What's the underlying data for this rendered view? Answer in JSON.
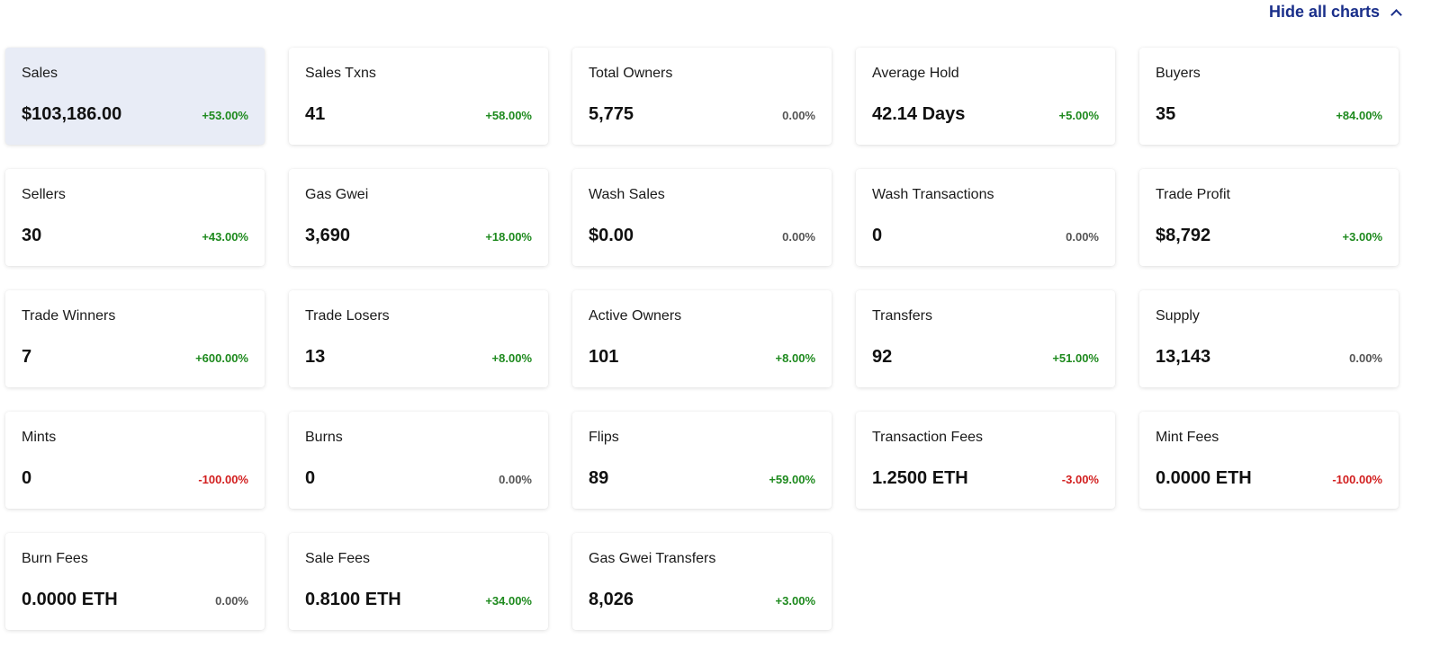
{
  "header": {
    "hide_label": "Hide all charts"
  },
  "cards": [
    {
      "label": "Sales",
      "value": "$103,186.00",
      "change": "+53.00%",
      "trend": "pos",
      "selected": true
    },
    {
      "label": "Sales Txns",
      "value": "41",
      "change": "+58.00%",
      "trend": "pos"
    },
    {
      "label": "Total Owners",
      "value": "5,775",
      "change": "0.00%",
      "trend": "neu"
    },
    {
      "label": "Average Hold",
      "value": "42.14 Days",
      "change": "+5.00%",
      "trend": "pos"
    },
    {
      "label": "Buyers",
      "value": "35",
      "change": "+84.00%",
      "trend": "pos"
    },
    {
      "label": "Sellers",
      "value": "30",
      "change": "+43.00%",
      "trend": "pos"
    },
    {
      "label": "Gas Gwei",
      "value": "3,690",
      "change": "+18.00%",
      "trend": "pos"
    },
    {
      "label": "Wash Sales",
      "value": "$0.00",
      "change": "0.00%",
      "trend": "neu"
    },
    {
      "label": "Wash Transactions",
      "value": "0",
      "change": "0.00%",
      "trend": "neu"
    },
    {
      "label": "Trade Profit",
      "value": "$8,792",
      "change": "+3.00%",
      "trend": "pos"
    },
    {
      "label": "Trade Winners",
      "value": "7",
      "change": "+600.00%",
      "trend": "pos"
    },
    {
      "label": "Trade Losers",
      "value": "13",
      "change": "+8.00%",
      "trend": "pos"
    },
    {
      "label": "Active Owners",
      "value": "101",
      "change": "+8.00%",
      "trend": "pos"
    },
    {
      "label": "Transfers",
      "value": "92",
      "change": "+51.00%",
      "trend": "pos"
    },
    {
      "label": "Supply",
      "value": "13,143",
      "change": "0.00%",
      "trend": "neu"
    },
    {
      "label": "Mints",
      "value": "0",
      "change": "-100.00%",
      "trend": "neg"
    },
    {
      "label": "Burns",
      "value": "0",
      "change": "0.00%",
      "trend": "neu"
    },
    {
      "label": "Flips",
      "value": "89",
      "change": "+59.00%",
      "trend": "pos"
    },
    {
      "label": "Transaction Fees",
      "value": "1.2500 ETH",
      "change": "-3.00%",
      "trend": "neg"
    },
    {
      "label": "Mint Fees",
      "value": "0.0000 ETH",
      "change": "-100.00%",
      "trend": "neg"
    },
    {
      "label": "Burn Fees",
      "value": "0.0000 ETH",
      "change": "0.00%",
      "trend": "neu"
    },
    {
      "label": "Sale Fees",
      "value": "0.8100 ETH",
      "change": "+34.00%",
      "trend": "pos"
    },
    {
      "label": "Gas Gwei Transfers",
      "value": "8,026",
      "change": "+3.00%",
      "trend": "pos"
    }
  ]
}
